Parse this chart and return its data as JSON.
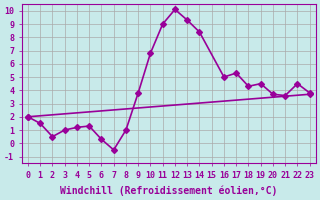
{
  "title": "",
  "xlabel": "Windchill (Refroidissement éolien,°C)",
  "ylabel": "",
  "bg_color": "#c8eaea",
  "line_color": "#990099",
  "grid_color": "#aaaaaa",
  "xlim": [
    -0.5,
    23.5
  ],
  "ylim": [
    -1.5,
    10.5
  ],
  "yticks": [
    -1,
    0,
    1,
    2,
    3,
    4,
    5,
    6,
    7,
    8,
    9,
    10
  ],
  "curve1_x": [
    0,
    1,
    2,
    3,
    4,
    5,
    6,
    7,
    8,
    9,
    10,
    11,
    12,
    13,
    14,
    16,
    17,
    18,
    19,
    20,
    21,
    22,
    23
  ],
  "curve1_y": [
    2.0,
    1.5,
    0.5,
    1.0,
    1.2,
    1.3,
    0.3,
    -0.5,
    1.0,
    3.8,
    6.8,
    9.0,
    10.1,
    9.3,
    8.4,
    5.0,
    5.3,
    4.3,
    4.5,
    3.7,
    3.6,
    4.5,
    3.8
  ],
  "curve2_x": [
    0,
    23
  ],
  "curve2_y": [
    2.0,
    3.7
  ],
  "marker": "D",
  "marker_size": 3,
  "line_width": 1.2,
  "font_size_label": 7,
  "font_size_tick": 6
}
